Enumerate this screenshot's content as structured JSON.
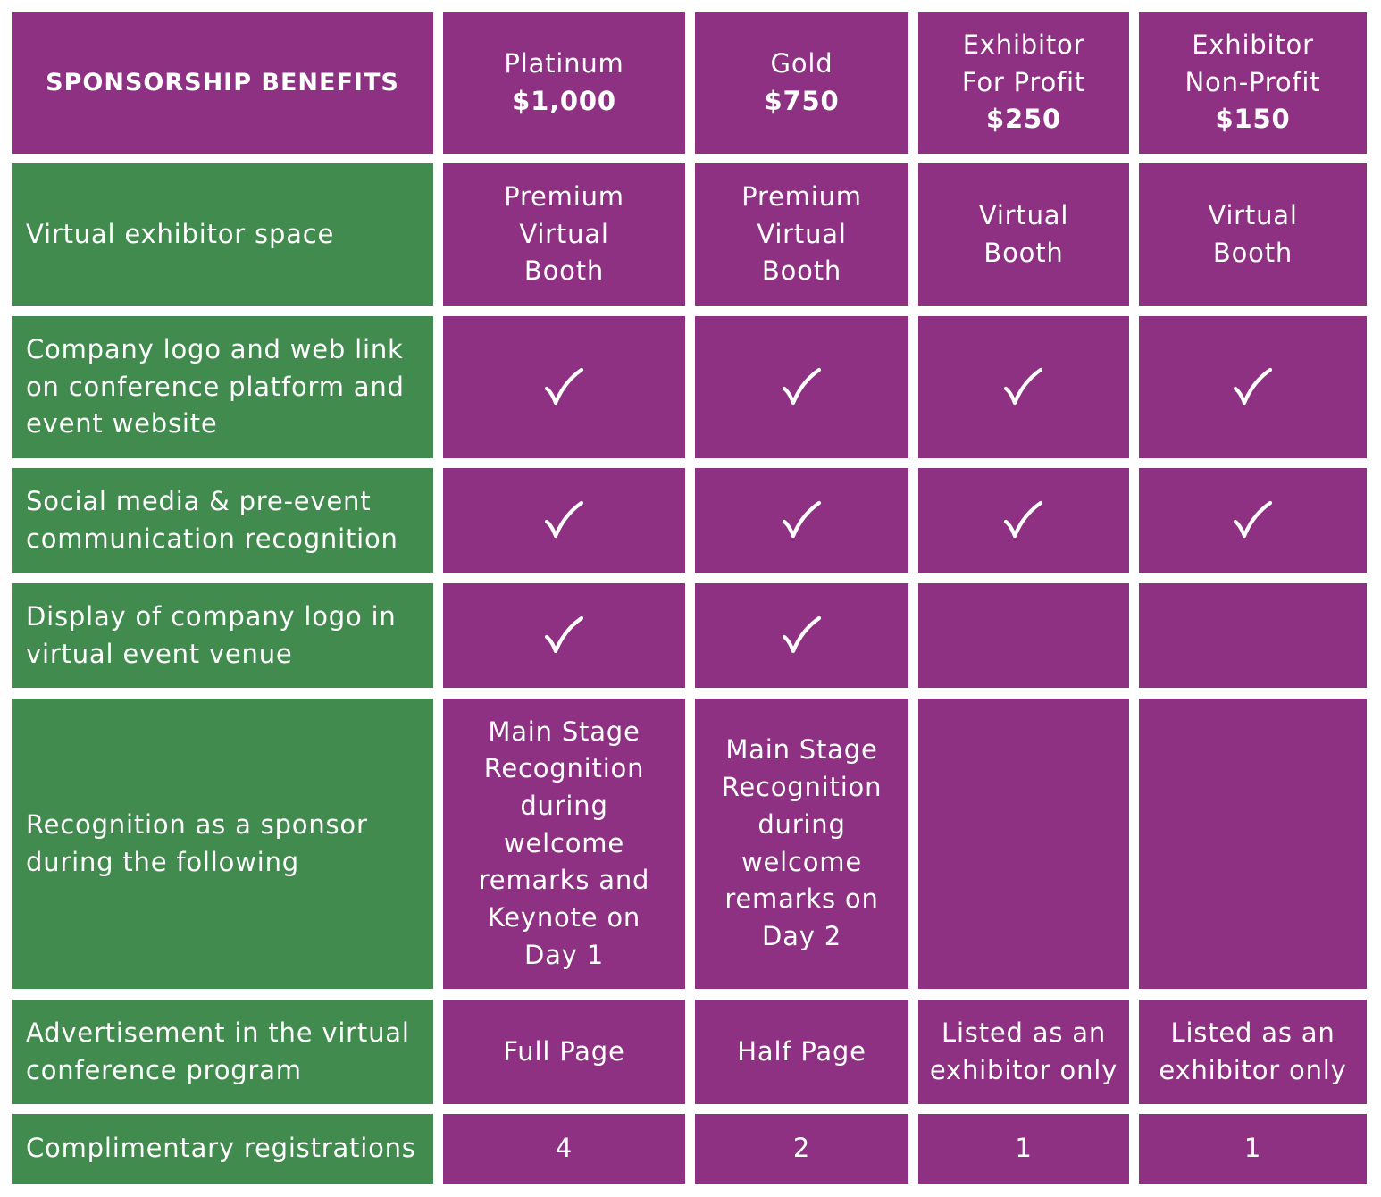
{
  "colors": {
    "header_bg": "#8E3183",
    "benefit_bg": "#428B4F",
    "text": "#FFFFFF"
  },
  "header": {
    "title": "SPONSORSHIP BENEFITS",
    "tiers": [
      {
        "name": "Platinum",
        "price": "$1,000"
      },
      {
        "name": "Gold",
        "price": "$750"
      },
      {
        "name": "Exhibitor\nFor Profit",
        "price": "$250"
      },
      {
        "name": "Exhibitor\nNon-Profit",
        "price": "$150"
      }
    ]
  },
  "rows": [
    {
      "benefit": "Virtual exhibitor space",
      "values": [
        "Premium\nVirtual\nBooth",
        "Premium\nVirtual\nBooth",
        "Virtual\nBooth",
        "Virtual\nBooth"
      ]
    },
    {
      "benefit": "Company logo and web link\non conference platform and\nevent website",
      "checks": [
        true,
        true,
        true,
        true
      ]
    },
    {
      "benefit": "Social media & pre-event\ncommunication recognition",
      "checks": [
        true,
        true,
        true,
        true
      ]
    },
    {
      "benefit": "Display of company logo in\nvirtual event venue",
      "checks": [
        true,
        true,
        false,
        false
      ]
    },
    {
      "benefit": "Recognition as a sponsor\nduring the following",
      "values": [
        "Main Stage\nRecognition\nduring\nwelcome\nremarks and\nKeynote on\nDay 1",
        "Main Stage\nRecognition\nduring\nwelcome\nremarks on\nDay 2",
        "",
        ""
      ]
    },
    {
      "benefit": "Advertisement in the virtual\nconference program",
      "values": [
        "Full Page",
        "Half Page",
        "Listed as an\nexhibitor only",
        "Listed as an\nexhibitor only"
      ]
    },
    {
      "benefit": "Complimentary registrations",
      "values": [
        "4",
        "2",
        "1",
        "1"
      ]
    }
  ],
  "icons": {
    "check": "checkmark-icon"
  }
}
